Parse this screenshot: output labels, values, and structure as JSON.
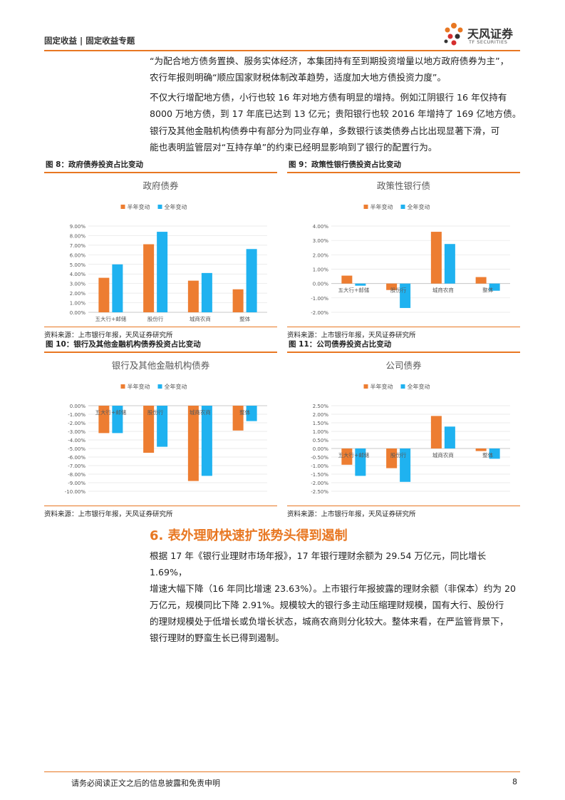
{
  "header": {
    "title": "固定收益 | 固定收益专题"
  },
  "logo": {
    "name_cn": "天风证券",
    "name_en": "TF SECURITIES"
  },
  "paragraphs": [
    [
      "“为配合地方债务置换、服务实体经济，本集团持有至到期投资增量以地方政府债券为主”，",
      "农行年报则明确“顺应国家财税体制改革趋势，适度加大地方债投资力度”。"
    ],
    [
      "不仅大行增配地方债，小行也较 16 年对地方债有明显的增持。例如江阴银行 16 年仅持有",
      "8000 万地方债，到 17 年底已达到 13 亿元；贵阳银行也较 2016 年增持了 169 亿地方债。"
    ],
    [
      "银行及其他金融机构债券中有部分为同业存单，多数银行该类债券占比出现显著下滑，可",
      "能也表明监管层对“互持存单”的约束已经明显影响到了银行的配置行为。"
    ]
  ],
  "colors": {
    "accent": "#e87722",
    "half_year": "#ed7d31",
    "full_year": "#1fb2f0"
  },
  "chart_data": [
    {
      "fig_label": "图 8：政府债券投资占比变动",
      "type": "bar",
      "title": "政府债券",
      "categories": [
        "五大行+邮储",
        "股份行",
        "城商农商",
        "整体"
      ],
      "series": [
        {
          "name": "半年变动",
          "values": [
            3.6,
            7.1,
            3.3,
            2.4
          ]
        },
        {
          "name": "全年变动",
          "values": [
            5.0,
            8.4,
            4.1,
            6.6
          ]
        }
      ],
      "ylim": [
        0,
        9
      ],
      "yticks": [
        "0.00%",
        "1.00%",
        "2.00%",
        "3.00%",
        "4.00%",
        "5.00%",
        "6.00%",
        "7.00%",
        "8.00%",
        "9.00%"
      ],
      "source": "资料来源：上市银行年报，天风证券研究所",
      "grid": true,
      "legend": "top"
    },
    {
      "fig_label": "图 9：政策性银行债投资占比变动",
      "type": "bar",
      "title": "政策性银行债",
      "categories": [
        "五大行+邮储",
        "股份行",
        "城商农商",
        "整体"
      ],
      "series": [
        {
          "name": "半年变动",
          "values": [
            0.55,
            -0.45,
            3.6,
            0.45
          ]
        },
        {
          "name": "全年变动",
          "values": [
            -0.15,
            -1.7,
            2.75,
            -0.5
          ]
        }
      ],
      "ylim": [
        -2,
        4
      ],
      "yticks": [
        "-2.00%",
        "-1.00%",
        "0.00%",
        "1.00%",
        "2.00%",
        "3.00%",
        "4.00%"
      ],
      "source": "资料来源：上市银行年报，天风证券研究所",
      "grid": true,
      "legend": "top"
    },
    {
      "fig_label": "图 10：银行及其他金融机构债券投资占比变动",
      "type": "bar",
      "title": "银行及其他金融机构债券",
      "categories": [
        "五大行+邮储",
        "股份行",
        "城商农商",
        "整体"
      ],
      "series": [
        {
          "name": "半年变动",
          "values": [
            -3.2,
            -5.5,
            -8.8,
            -2.9
          ]
        },
        {
          "name": "全年变动",
          "values": [
            -3.2,
            -4.8,
            -8.2,
            -1.8
          ]
        }
      ],
      "ylim": [
        -10,
        0
      ],
      "yticks": [
        "-10.00%",
        "-9.00%",
        "-8.00%",
        "-7.00%",
        "-6.00%",
        "-5.00%",
        "-4.00%",
        "-3.00%",
        "-2.00%",
        "-1.00%",
        "0.00%"
      ],
      "source": "资料来源：上市银行年报，天风证券研究所",
      "grid": true,
      "legend": "top"
    },
    {
      "fig_label": "图 11：公司债券投资占比变动",
      "type": "bar",
      "title": "公司债券",
      "categories": [
        "五大行+邮储",
        "股份行",
        "城商农商",
        "整体"
      ],
      "series": [
        {
          "name": "半年变动",
          "values": [
            -0.95,
            -1.15,
            1.9,
            -0.15
          ]
        },
        {
          "name": "全年变动",
          "values": [
            -1.6,
            -1.95,
            1.28,
            -0.6
          ]
        }
      ],
      "ylim": [
        -2.5,
        2.5
      ],
      "yticks": [
        "-2.50%",
        "-2.00%",
        "-1.50%",
        "-1.00%",
        "-0.50%",
        "0.00%",
        "0.50%",
        "1.00%",
        "1.50%",
        "2.00%",
        "2.50%"
      ],
      "source": "资料来源：上市银行年报，天风证券研究所",
      "grid": true,
      "legend": "top"
    }
  ],
  "section": {
    "title": "6. 表外理财快速扩张势头得到遏制"
  },
  "section_paragraph": [
    "根据 17 年《银行业理财市场年报》，17 年银行理财余额为 29.54 万亿元，同比增长 1.69%，",
    "增速大幅下降（16 年同比增速 23.63%）。上市银行年报披露的理财余额（非保本）约为 20",
    "万亿元，规模同比下降 2.91%。规模较大的银行多主动压缩理财规模，国有大行、股份行",
    "的理财规模处于低增长或负增长状态，城商农商则分化较大。整体来看，在严监管背景下，",
    "银行理财的野蛮生长已得到遏制。"
  ],
  "footer": {
    "disclaimer": "请务必阅读正文之后的信息披露和免责申明",
    "page": "8"
  }
}
